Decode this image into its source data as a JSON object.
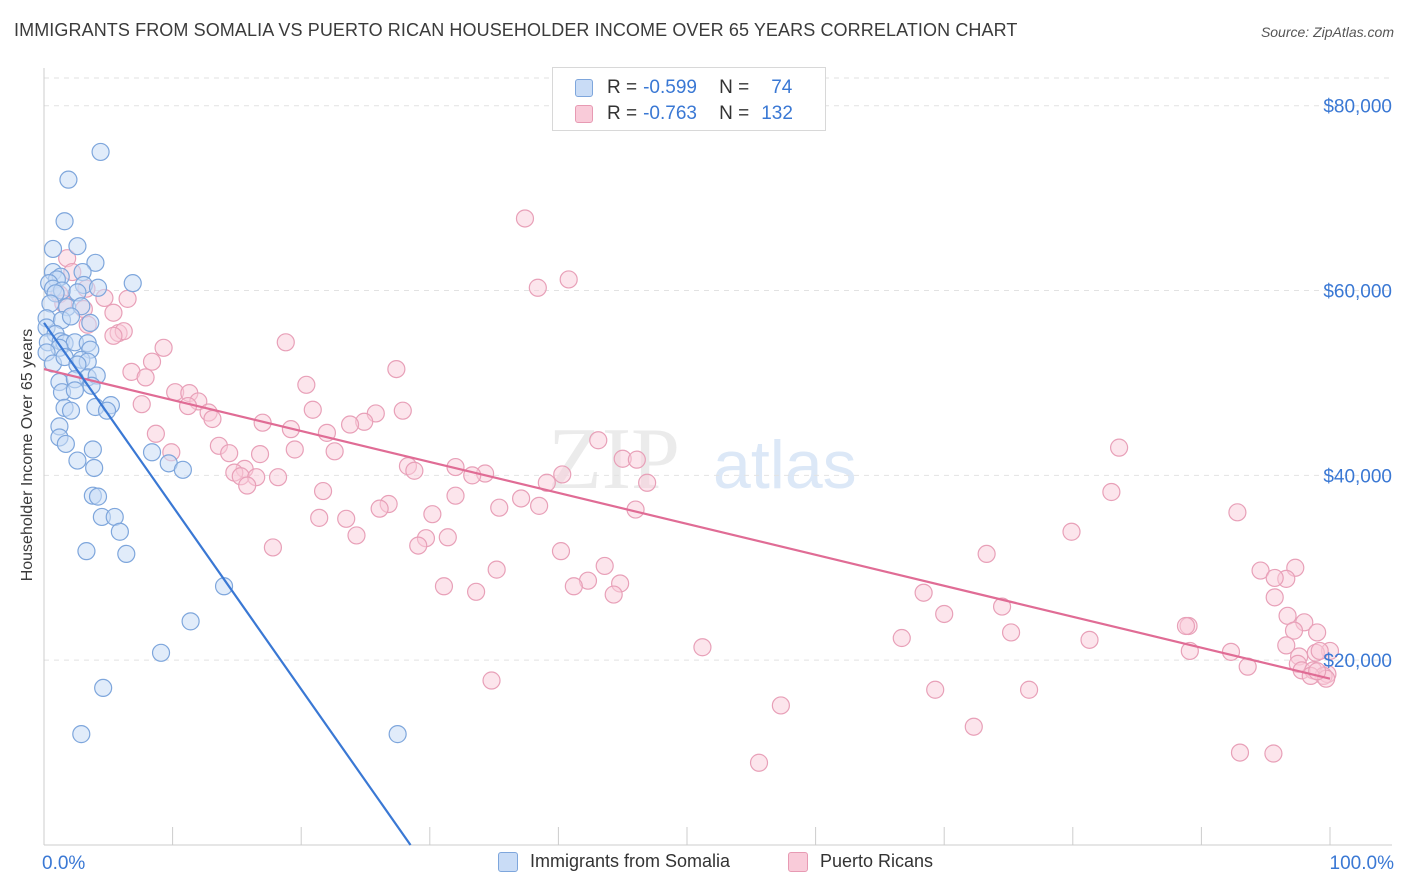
{
  "title": "IMMIGRANTS FROM SOMALIA VS PUERTO RICAN HOUSEHOLDER INCOME OVER 65 YEARS CORRELATION CHART",
  "source": "Source: ZipAtlas.com",
  "watermark": {
    "zip": "ZIP",
    "atlas": "atlas"
  },
  "legend": {
    "series": [
      {
        "r_label": "R =",
        "r_value": "-0.599",
        "n_label": "N =",
        "n_value": "74"
      },
      {
        "r_label": "R =",
        "r_value": "-0.763",
        "n_label": "N =",
        "n_value": "132"
      }
    ]
  },
  "bottom_legend": {
    "somalia": "Immigrants from Somalia",
    "puerto_rican": "Puerto Ricans"
  },
  "chart_data": {
    "type": "scatter",
    "title": "IMMIGRANTS FROM SOMALIA VS PUERTO RICAN HOUSEHOLDER INCOME OVER 65 YEARS CORRELATION CHART",
    "ylabel": "Householder Income Over 65 years",
    "xlabel": "",
    "xlim": [
      0,
      100
    ],
    "ylim": [
      0,
      83000
    ],
    "x_tick_labels": [
      "0.0%",
      "100.0%"
    ],
    "y_ticks": [
      20000,
      40000,
      60000,
      80000
    ],
    "y_tick_labels": [
      "$20,000",
      "$40,000",
      "$60,000",
      "$80,000"
    ],
    "grid": "horizontal dashed",
    "colors": {
      "somalia": "#3a78d4",
      "somalia_fill": "#c9dcf6",
      "puerto_rican": "#e06c95",
      "puerto_rican_fill": "#f9cbd9"
    },
    "series": [
      {
        "name": "Immigrants from Somalia",
        "r": -0.599,
        "n": 74,
        "trend": {
          "x": [
            0,
            28.5
          ],
          "y": [
            56500,
            0
          ]
        },
        "points": [
          [
            4.4,
            75000
          ],
          [
            1.9,
            72000
          ],
          [
            1.6,
            67500
          ],
          [
            0.7,
            64500
          ],
          [
            2.6,
            64800
          ],
          [
            4.0,
            63000
          ],
          [
            0.7,
            62000
          ],
          [
            1.3,
            61500
          ],
          [
            3.0,
            62000
          ],
          [
            1.0,
            61200
          ],
          [
            0.4,
            60800
          ],
          [
            3.1,
            60600
          ],
          [
            6.9,
            60800
          ],
          [
            0.7,
            60200
          ],
          [
            1.4,
            60000
          ],
          [
            4.2,
            60300
          ],
          [
            0.9,
            59700
          ],
          [
            2.6,
            59800
          ],
          [
            0.5,
            58600
          ],
          [
            1.8,
            58200
          ],
          [
            2.9,
            58300
          ],
          [
            0.2,
            57000
          ],
          [
            1.4,
            56800
          ],
          [
            2.1,
            57200
          ],
          [
            3.6,
            56500
          ],
          [
            0.2,
            56000
          ],
          [
            0.9,
            55300
          ],
          [
            0.3,
            54400
          ],
          [
            1.3,
            54500
          ],
          [
            1.6,
            54300
          ],
          [
            2.4,
            54400
          ],
          [
            3.4,
            54300
          ],
          [
            1.2,
            53800
          ],
          [
            3.6,
            53600
          ],
          [
            0.2,
            53300
          ],
          [
            0.7,
            52100
          ],
          [
            1.6,
            52800
          ],
          [
            2.9,
            52500
          ],
          [
            3.4,
            52300
          ],
          [
            2.6,
            52000
          ],
          [
            3.4,
            50600
          ],
          [
            4.1,
            50800
          ],
          [
            1.2,
            50100
          ],
          [
            2.4,
            50400
          ],
          [
            3.7,
            49700
          ],
          [
            1.4,
            49000
          ],
          [
            2.4,
            49200
          ],
          [
            1.6,
            47300
          ],
          [
            4.0,
            47400
          ],
          [
            5.2,
            47600
          ],
          [
            4.9,
            47000
          ],
          [
            2.1,
            47000
          ],
          [
            1.2,
            45300
          ],
          [
            1.2,
            44100
          ],
          [
            1.7,
            43400
          ],
          [
            3.8,
            42800
          ],
          [
            8.4,
            42500
          ],
          [
            2.6,
            41600
          ],
          [
            9.7,
            41300
          ],
          [
            3.9,
            40800
          ],
          [
            10.8,
            40600
          ],
          [
            3.8,
            37800
          ],
          [
            4.2,
            37700
          ],
          [
            4.5,
            35500
          ],
          [
            5.5,
            35500
          ],
          [
            5.9,
            33900
          ],
          [
            3.3,
            31800
          ],
          [
            6.4,
            31500
          ],
          [
            14.0,
            28000
          ],
          [
            11.4,
            24200
          ],
          [
            9.1,
            20800
          ],
          [
            4.6,
            17000
          ],
          [
            2.9,
            12000
          ],
          [
            27.5,
            12000
          ]
        ]
      },
      {
        "name": "Puerto Ricans",
        "r": -0.763,
        "n": 132,
        "trend": {
          "x": [
            0,
            100
          ],
          "y": [
            51500,
            18000
          ]
        },
        "points": [
          [
            37.4,
            67800
          ],
          [
            1.8,
            63500
          ],
          [
            2.2,
            62000
          ],
          [
            40.8,
            61200
          ],
          [
            38.4,
            60300
          ],
          [
            3.3,
            60200
          ],
          [
            1.2,
            59600
          ],
          [
            4.7,
            59200
          ],
          [
            6.5,
            59100
          ],
          [
            1.5,
            58600
          ],
          [
            3.1,
            58000
          ],
          [
            5.4,
            57600
          ],
          [
            3.4,
            56300
          ],
          [
            5.8,
            55400
          ],
          [
            6.2,
            55600
          ],
          [
            5.4,
            55100
          ],
          [
            18.8,
            54400
          ],
          [
            9.3,
            53800
          ],
          [
            8.4,
            52300
          ],
          [
            27.4,
            51500
          ],
          [
            6.8,
            51200
          ],
          [
            7.9,
            50600
          ],
          [
            20.4,
            49800
          ],
          [
            10.2,
            49000
          ],
          [
            11.3,
            48900
          ],
          [
            12.0,
            48000
          ],
          [
            7.6,
            47700
          ],
          [
            11.2,
            47500
          ],
          [
            20.9,
            47100
          ],
          [
            27.9,
            47000
          ],
          [
            12.8,
            46800
          ],
          [
            25.8,
            46700
          ],
          [
            13.1,
            46100
          ],
          [
            24.9,
            45800
          ],
          [
            17.0,
            45700
          ],
          [
            23.8,
            45500
          ],
          [
            19.2,
            45000
          ],
          [
            22.0,
            44600
          ],
          [
            8.7,
            44500
          ],
          [
            43.1,
            43800
          ],
          [
            83.6,
            43000
          ],
          [
            13.6,
            43200
          ],
          [
            19.5,
            42800
          ],
          [
            22.6,
            42600
          ],
          [
            14.4,
            42400
          ],
          [
            9.9,
            42500
          ],
          [
            16.8,
            42300
          ],
          [
            45.0,
            41800
          ],
          [
            46.1,
            41700
          ],
          [
            15.6,
            40700
          ],
          [
            28.3,
            41000
          ],
          [
            32.0,
            40900
          ],
          [
            28.8,
            40500
          ],
          [
            14.8,
            40300
          ],
          [
            34.3,
            40200
          ],
          [
            40.3,
            40100
          ],
          [
            33.3,
            40000
          ],
          [
            15.3,
            39900
          ],
          [
            16.5,
            39800
          ],
          [
            18.2,
            39800
          ],
          [
            39.1,
            39200
          ],
          [
            46.9,
            39200
          ],
          [
            15.8,
            38900
          ],
          [
            21.7,
            38300
          ],
          [
            32.0,
            37800
          ],
          [
            83.0,
            38200
          ],
          [
            37.1,
            37500
          ],
          [
            26.8,
            36900
          ],
          [
            26.1,
            36400
          ],
          [
            35.4,
            36500
          ],
          [
            46.0,
            36300
          ],
          [
            38.5,
            36700
          ],
          [
            92.8,
            36000
          ],
          [
            30.2,
            35800
          ],
          [
            21.4,
            35400
          ],
          [
            23.5,
            35300
          ],
          [
            79.9,
            33900
          ],
          [
            24.3,
            33500
          ],
          [
            29.7,
            33200
          ],
          [
            29.1,
            32400
          ],
          [
            31.4,
            33300
          ],
          [
            17.8,
            32200
          ],
          [
            40.2,
            31800
          ],
          [
            73.3,
            31500
          ],
          [
            35.2,
            29800
          ],
          [
            43.6,
            30200
          ],
          [
            94.6,
            29700
          ],
          [
            97.3,
            30000
          ],
          [
            42.3,
            28600
          ],
          [
            96.6,
            28800
          ],
          [
            95.7,
            28900
          ],
          [
            44.8,
            28300
          ],
          [
            41.2,
            28000
          ],
          [
            31.1,
            28000
          ],
          [
            33.6,
            27400
          ],
          [
            44.3,
            27100
          ],
          [
            68.4,
            27300
          ],
          [
            95.7,
            26800
          ],
          [
            74.5,
            25800
          ],
          [
            70.0,
            25000
          ],
          [
            96.7,
            24800
          ],
          [
            98.0,
            24100
          ],
          [
            89.0,
            23700
          ],
          [
            88.8,
            23700
          ],
          [
            99.0,
            23000
          ],
          [
            97.2,
            23200
          ],
          [
            75.2,
            23000
          ],
          [
            81.3,
            22200
          ],
          [
            66.7,
            22400
          ],
          [
            96.6,
            21600
          ],
          [
            51.2,
            21400
          ],
          [
            89.1,
            21000
          ],
          [
            100.0,
            21000
          ],
          [
            98.9,
            20800
          ],
          [
            99.2,
            21000
          ],
          [
            92.3,
            20900
          ],
          [
            97.6,
            20400
          ],
          [
            97.5,
            19600
          ],
          [
            93.6,
            19300
          ],
          [
            97.8,
            18900
          ],
          [
            98.7,
            18900
          ],
          [
            99.8,
            18500
          ],
          [
            99.5,
            18300
          ],
          [
            98.5,
            18300
          ],
          [
            99.7,
            18000
          ],
          [
            34.8,
            17800
          ],
          [
            69.3,
            16800
          ],
          [
            76.6,
            16800
          ],
          [
            57.3,
            15100
          ],
          [
            72.3,
            12800
          ],
          [
            93.0,
            10000
          ],
          [
            95.6,
            9900
          ],
          [
            55.6,
            8900
          ],
          [
            99.0,
            18800
          ]
        ]
      }
    ]
  }
}
